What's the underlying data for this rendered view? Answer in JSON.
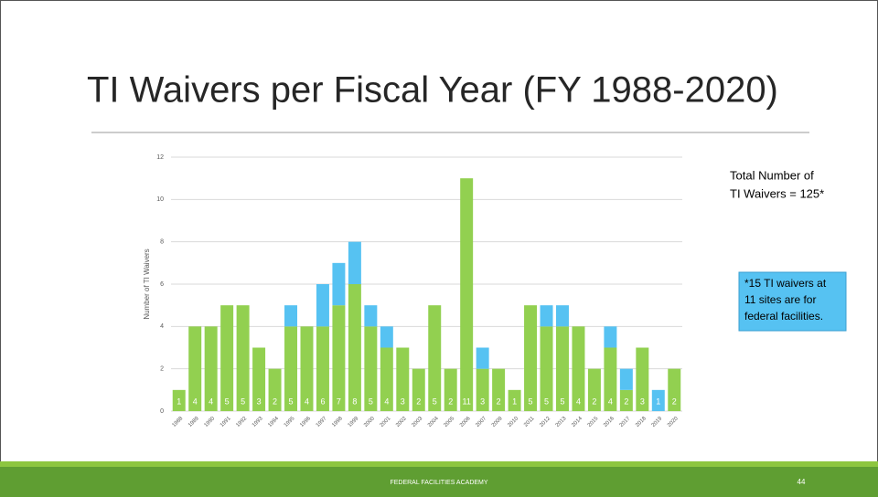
{
  "slide": {
    "title": "TI Waivers per Fiscal Year (FY 1988-2020)",
    "note_lines": [
      "Total Number of",
      "TI Waivers = 125*"
    ],
    "box_lines": [
      "*15 TI waivers at",
      "11 sites are for",
      "federal facilities."
    ],
    "footer": "FEDERAL FACILITIES ACADEMY",
    "page_number": "44"
  },
  "chart_data": {
    "type": "stacked_bar",
    "y_label": "Number of TI Waivers",
    "categories": [
      "1988",
      "1989",
      "1990",
      "1991",
      "1992",
      "1993",
      "1994",
      "1995",
      "1996",
      "1997",
      "1998",
      "1999",
      "2000",
      "2001",
      "2002",
      "2003",
      "2004",
      "2005",
      "2006",
      "2007",
      "2009",
      "2010",
      "2011",
      "2012",
      "2013",
      "2014",
      "2015",
      "2016",
      "2017",
      "2018",
      "2019",
      "2020"
    ],
    "series": [
      {
        "color": "#92d050",
        "values": [
          1,
          4,
          4,
          5,
          5,
          3,
          2,
          4,
          4,
          4,
          5,
          6,
          4,
          3,
          3,
          2,
          5,
          2,
          11,
          2,
          2,
          1,
          5,
          4,
          4,
          4,
          2,
          3,
          1,
          3,
          0,
          2
        ]
      },
      {
        "color": "#56c2f2",
        "values": [
          0,
          0,
          0,
          0,
          0,
          0,
          0,
          1,
          0,
          2,
          2,
          2,
          1,
          1,
          0,
          0,
          0,
          0,
          0,
          1,
          0,
          0,
          0,
          1,
          1,
          0,
          0,
          1,
          1,
          0,
          1,
          0
        ]
      }
    ],
    "bar_labels": [
      1,
      4,
      4,
      5,
      5,
      3,
      2,
      5,
      4,
      6,
      7,
      8,
      5,
      4,
      3,
      2,
      5,
      2,
      11,
      3,
      2,
      1,
      5,
      5,
      5,
      4,
      2,
      4,
      2,
      3,
      1,
      2
    ],
    "ylim": [
      0,
      12
    ],
    "yticks": [
      0,
      2,
      4,
      6,
      8,
      10,
      12
    ],
    "grid": true
  }
}
